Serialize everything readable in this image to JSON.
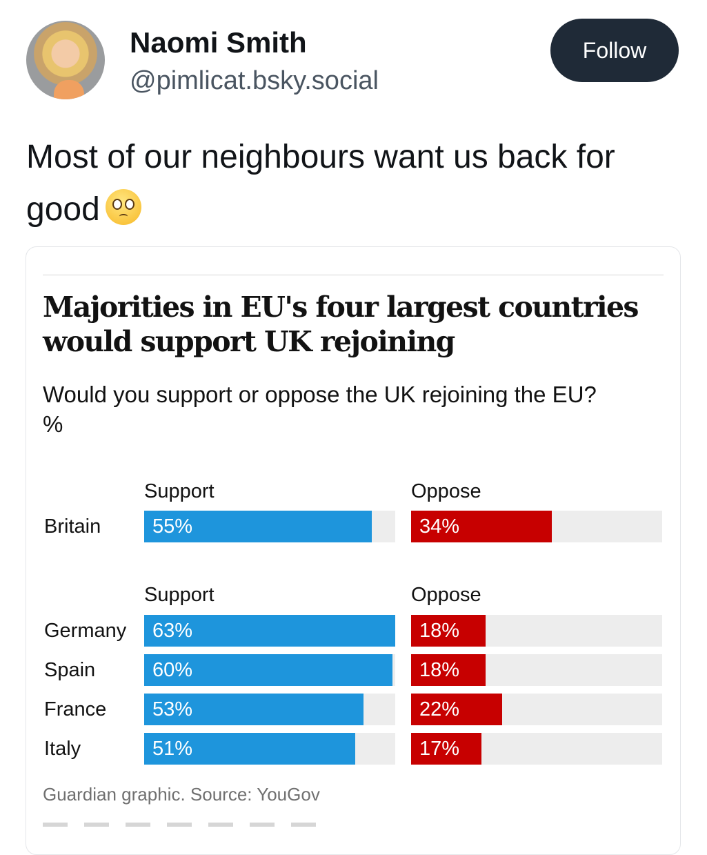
{
  "post": {
    "author_name": "Naomi Smith",
    "author_handle": "@pimlicat.bsky.social",
    "follow_label": "Follow",
    "text": "Most of our neighbours want us back for good",
    "emoji": "pleading-face-icon"
  },
  "colors": {
    "support": "#1e95dc",
    "oppose": "#c70000",
    "track": "#ededed",
    "follow_bg": "#1f2a37"
  },
  "chart_data": {
    "type": "bar",
    "title": "Majorities in EU's four largest countries would support UK rejoining",
    "subtitle": "Would you support or oppose the UK rejoining the EU?",
    "unit": "%",
    "xlim": [
      0,
      100
    ],
    "groups": [
      {
        "support_header": "Support",
        "oppose_header": "Oppose",
        "categories": [
          "Britain"
        ],
        "series": [
          {
            "name": "Support",
            "values": [
              55
            ],
            "labels": [
              "55%"
            ]
          },
          {
            "name": "Oppose",
            "values": [
              34
            ],
            "labels": [
              "34%"
            ]
          }
        ]
      },
      {
        "support_header": "Support",
        "oppose_header": "Oppose",
        "categories": [
          "Germany",
          "Spain",
          "France",
          "Italy"
        ],
        "series": [
          {
            "name": "Support",
            "values": [
              63,
              60,
              53,
              51
            ],
            "labels": [
              "63%",
              "60%",
              "53%",
              "51%"
            ]
          },
          {
            "name": "Oppose",
            "values": [
              18,
              18,
              22,
              17
            ],
            "labels": [
              "18%",
              "18%",
              "22%",
              "17%"
            ]
          }
        ]
      }
    ],
    "source": "Guardian graphic. Source: YouGov"
  }
}
